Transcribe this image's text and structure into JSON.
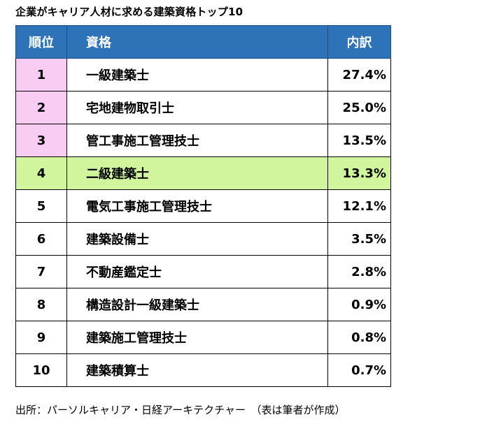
{
  "title": "企業がキャリア人材に求める建築資格トップ10",
  "chart_data": {
    "type": "table",
    "title": "企業がキャリア人材に求める建築資格トップ10",
    "columns": [
      "順位",
      "資格",
      "内訳"
    ],
    "rows": [
      {
        "rank": "1",
        "name": "一級建築士",
        "pct": "27.4%",
        "value": 27.4,
        "highlight": "pink"
      },
      {
        "rank": "2",
        "name": "宅地建物取引士",
        "pct": "25.0%",
        "value": 25.0,
        "highlight": "pink"
      },
      {
        "rank": "3",
        "name": "管工事施工管理技士",
        "pct": "13.5%",
        "value": 13.5,
        "highlight": "pink"
      },
      {
        "rank": "4",
        "name": "二級建築士",
        "pct": "13.3%",
        "value": 13.3,
        "highlight": "green"
      },
      {
        "rank": "5",
        "name": "電気工事施工管理技士",
        "pct": "12.1%",
        "value": 12.1,
        "highlight": ""
      },
      {
        "rank": "6",
        "name": "建築設備士",
        "pct": "3.5%",
        "value": 3.5,
        "highlight": ""
      },
      {
        "rank": "7",
        "name": "不動産鑑定士",
        "pct": "2.8%",
        "value": 2.8,
        "highlight": ""
      },
      {
        "rank": "8",
        "name": "構造設計一級建築士",
        "pct": "0.9%",
        "value": 0.9,
        "highlight": ""
      },
      {
        "rank": "9",
        "name": "建築施工管理技士",
        "pct": "0.8%",
        "value": 0.8,
        "highlight": ""
      },
      {
        "rank": "10",
        "name": "建築積算士",
        "pct": "0.7%",
        "value": 0.7,
        "highlight": ""
      }
    ],
    "colors": {
      "header": "#2e73b8",
      "pink": "#f9ccf4",
      "green": "#d1f59c"
    }
  },
  "source": "出所：パーソルキャリア・日経アーキテクチャー　（表は筆者が作成）"
}
